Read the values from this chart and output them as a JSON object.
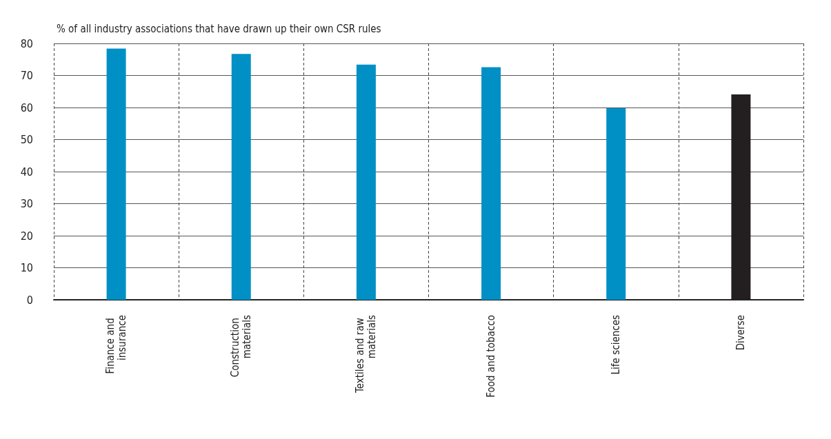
{
  "chart_data": {
    "type": "bar",
    "ylabel": "% of all industry associations that have drawn up their own CSR rules",
    "categories": [
      "Finance and insurance",
      "Construction materials",
      "Textiles and raw materials",
      "Food and tobacco",
      "Life sciences",
      "Diverse"
    ],
    "values": [
      78.4,
      76.7,
      73.4,
      72.6,
      59.8,
      64.1
    ],
    "colors": [
      "#0090c5",
      "#0090c5",
      "#0090c5",
      "#0090c5",
      "#0090c5",
      "#231f20"
    ],
    "ylim": [
      0,
      80
    ],
    "yticks": [
      0,
      10,
      20,
      30,
      40,
      50,
      60,
      70,
      80
    ],
    "grid": true
  }
}
